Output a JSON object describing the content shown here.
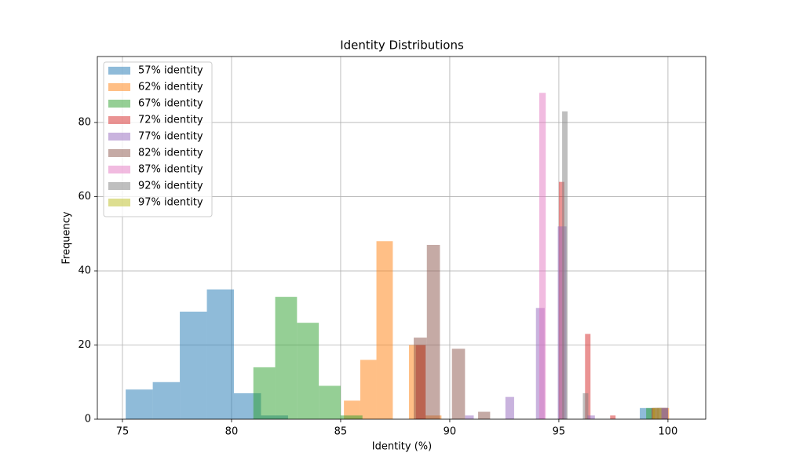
{
  "chart_data": {
    "type": "histogram",
    "title": "Identity Distributions",
    "x_label": "Identity (%)",
    "y_label": "Frequency",
    "xlim": [
      73.85,
      101.73
    ],
    "ylim": [
      0,
      97.8
    ],
    "xticks": [
      75,
      80,
      85,
      90,
      95,
      100
    ],
    "yticks": [
      0,
      20,
      40,
      60,
      80
    ],
    "grid": true,
    "legend": "upper left",
    "opacity": 0.5,
    "series": [
      {
        "name": "57% identity",
        "color": "#1f77b4",
        "bins": [
          75.15,
          76.39,
          77.63,
          78.87,
          80.11,
          81.35,
          82.59,
          83.83,
          85.07,
          86.31,
          87.55,
          88.79,
          90.03,
          91.27,
          92.51,
          93.75,
          94.99,
          96.23,
          97.47,
          98.71,
          99.95
        ],
        "values": [
          8,
          10,
          29,
          35,
          7,
          1,
          0,
          0,
          0,
          0,
          0,
          0,
          0,
          0,
          0,
          0,
          0,
          0,
          0,
          3
        ]
      },
      {
        "name": "62% identity",
        "color": "#ff7f0e",
        "bins": [
          85.15,
          85.9,
          86.64,
          87.39,
          88.13,
          88.88,
          89.62,
          90.37,
          91.11,
          91.86,
          92.6,
          93.35,
          94.09,
          94.84,
          95.58,
          96.33,
          97.07,
          97.82,
          98.56,
          99.31,
          100.05
        ],
        "values": [
          5,
          16,
          48,
          0,
          20,
          1,
          0,
          0,
          0,
          0,
          0,
          0,
          0,
          0,
          0,
          0,
          0,
          0,
          0,
          3
        ]
      },
      {
        "name": "67% identity",
        "color": "#2ca02c",
        "bins": [
          81,
          82,
          83,
          84,
          85,
          86,
          87,
          88,
          89,
          90,
          91,
          92,
          93,
          94,
          95,
          96,
          97,
          98,
          99,
          100
        ],
        "values": [
          14,
          33,
          26,
          9,
          1,
          0,
          0,
          0,
          0,
          0,
          0,
          0,
          0,
          0,
          0,
          0,
          0,
          0,
          3
        ]
      },
      {
        "name": "72% identity",
        "color": "#d62728",
        "bins": [
          88.45,
          88.9,
          95.0,
          95.25,
          96.2,
          96.45,
          97.35,
          97.6,
          99.25,
          100.0
        ],
        "values": [
          20,
          0,
          64,
          0,
          23,
          0,
          1,
          0,
          3
        ]
      },
      {
        "name": "77% identity",
        "color": "#9467bd",
        "bins": [
          90.7,
          91.1,
          92.55,
          92.95,
          93.95,
          94.35,
          94.95,
          95.35,
          96.3,
          96.65,
          99.4,
          100.0
        ],
        "values": [
          1,
          0,
          6,
          0,
          30,
          0,
          52,
          0,
          1,
          0,
          3
        ]
      },
      {
        "name": "82% identity",
        "color": "#8c564b",
        "bins": [
          88.35,
          88.95,
          89.55,
          90.1,
          90.7,
          91.3,
          91.85,
          99.5,
          100.0
        ],
        "values": [
          22,
          47,
          0,
          19,
          0,
          2,
          0,
          3
        ]
      },
      {
        "name": "87% identity",
        "color": "#e377c2",
        "bins": [
          94.1,
          94.4,
          99.6,
          100.0
        ],
        "values": [
          88,
          0,
          3
        ]
      },
      {
        "name": "92% identity",
        "color": "#7f7f7f",
        "bins": [
          95.15,
          95.4,
          96.1,
          96.35,
          99.6,
          100.0
        ],
        "values": [
          83,
          0,
          7,
          0,
          3
        ]
      },
      {
        "name": "97% identity",
        "color": "#bcbd22",
        "bins": [
          99.3,
          99.7
        ],
        "values": [
          3
        ]
      }
    ]
  }
}
